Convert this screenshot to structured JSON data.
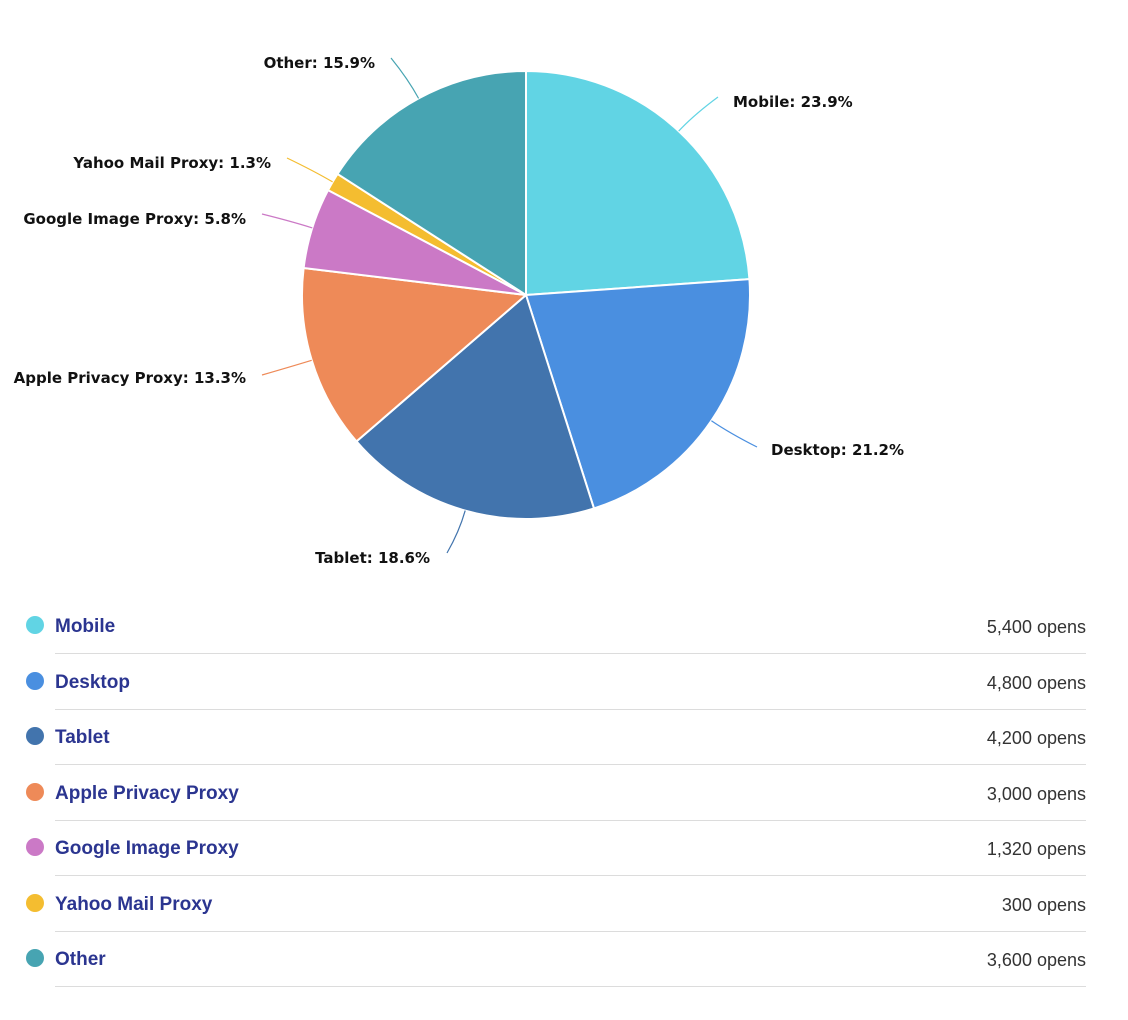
{
  "chart_data": {
    "type": "pie",
    "unit_suffix": "opens",
    "slices": [
      {
        "name": "Mobile",
        "value": 5400,
        "label": "Mobile: 23.9%",
        "color": "#61d4e4"
      },
      {
        "name": "Desktop",
        "value": 4800,
        "label": "Desktop: 21.2%",
        "color": "#4a8fe0"
      },
      {
        "name": "Tablet",
        "value": 4200,
        "label": "Tablet: 18.6%",
        "color": "#4274ad"
      },
      {
        "name": "Apple Privacy Proxy",
        "value": 3000,
        "label": "Apple Privacy Proxy: 13.3%",
        "color": "#ee8a58"
      },
      {
        "name": "Google Image Proxy",
        "value": 1320,
        "label": "Google Image Proxy: 5.8%",
        "color": "#cb79c6"
      },
      {
        "name": "Yahoo Mail Proxy",
        "value": 300,
        "label": "Yahoo Mail Proxy: 1.3%",
        "color": "#f4bd30"
      },
      {
        "name": "Other",
        "value": 3600,
        "label": "Other: 15.9%",
        "color": "#47a4b2"
      }
    ]
  },
  "legend": {
    "items": [
      {
        "name": "Mobile",
        "value_text": "5,400 opens",
        "color": "#61d4e4"
      },
      {
        "name": "Desktop",
        "value_text": "4,800 opens",
        "color": "#4a8fe0"
      },
      {
        "name": "Tablet",
        "value_text": "4,200 opens",
        "color": "#4274ad"
      },
      {
        "name": "Apple Privacy Proxy",
        "value_text": "3,000 opens",
        "color": "#ee8a58"
      },
      {
        "name": "Google Image Proxy",
        "value_text": "1,320 opens",
        "color": "#cb79c6"
      },
      {
        "name": "Yahoo Mail Proxy",
        "value_text": "300 opens",
        "color": "#f4bd30"
      },
      {
        "name": "Other",
        "value_text": "3,600 opens",
        "color": "#47a4b2"
      }
    ]
  }
}
